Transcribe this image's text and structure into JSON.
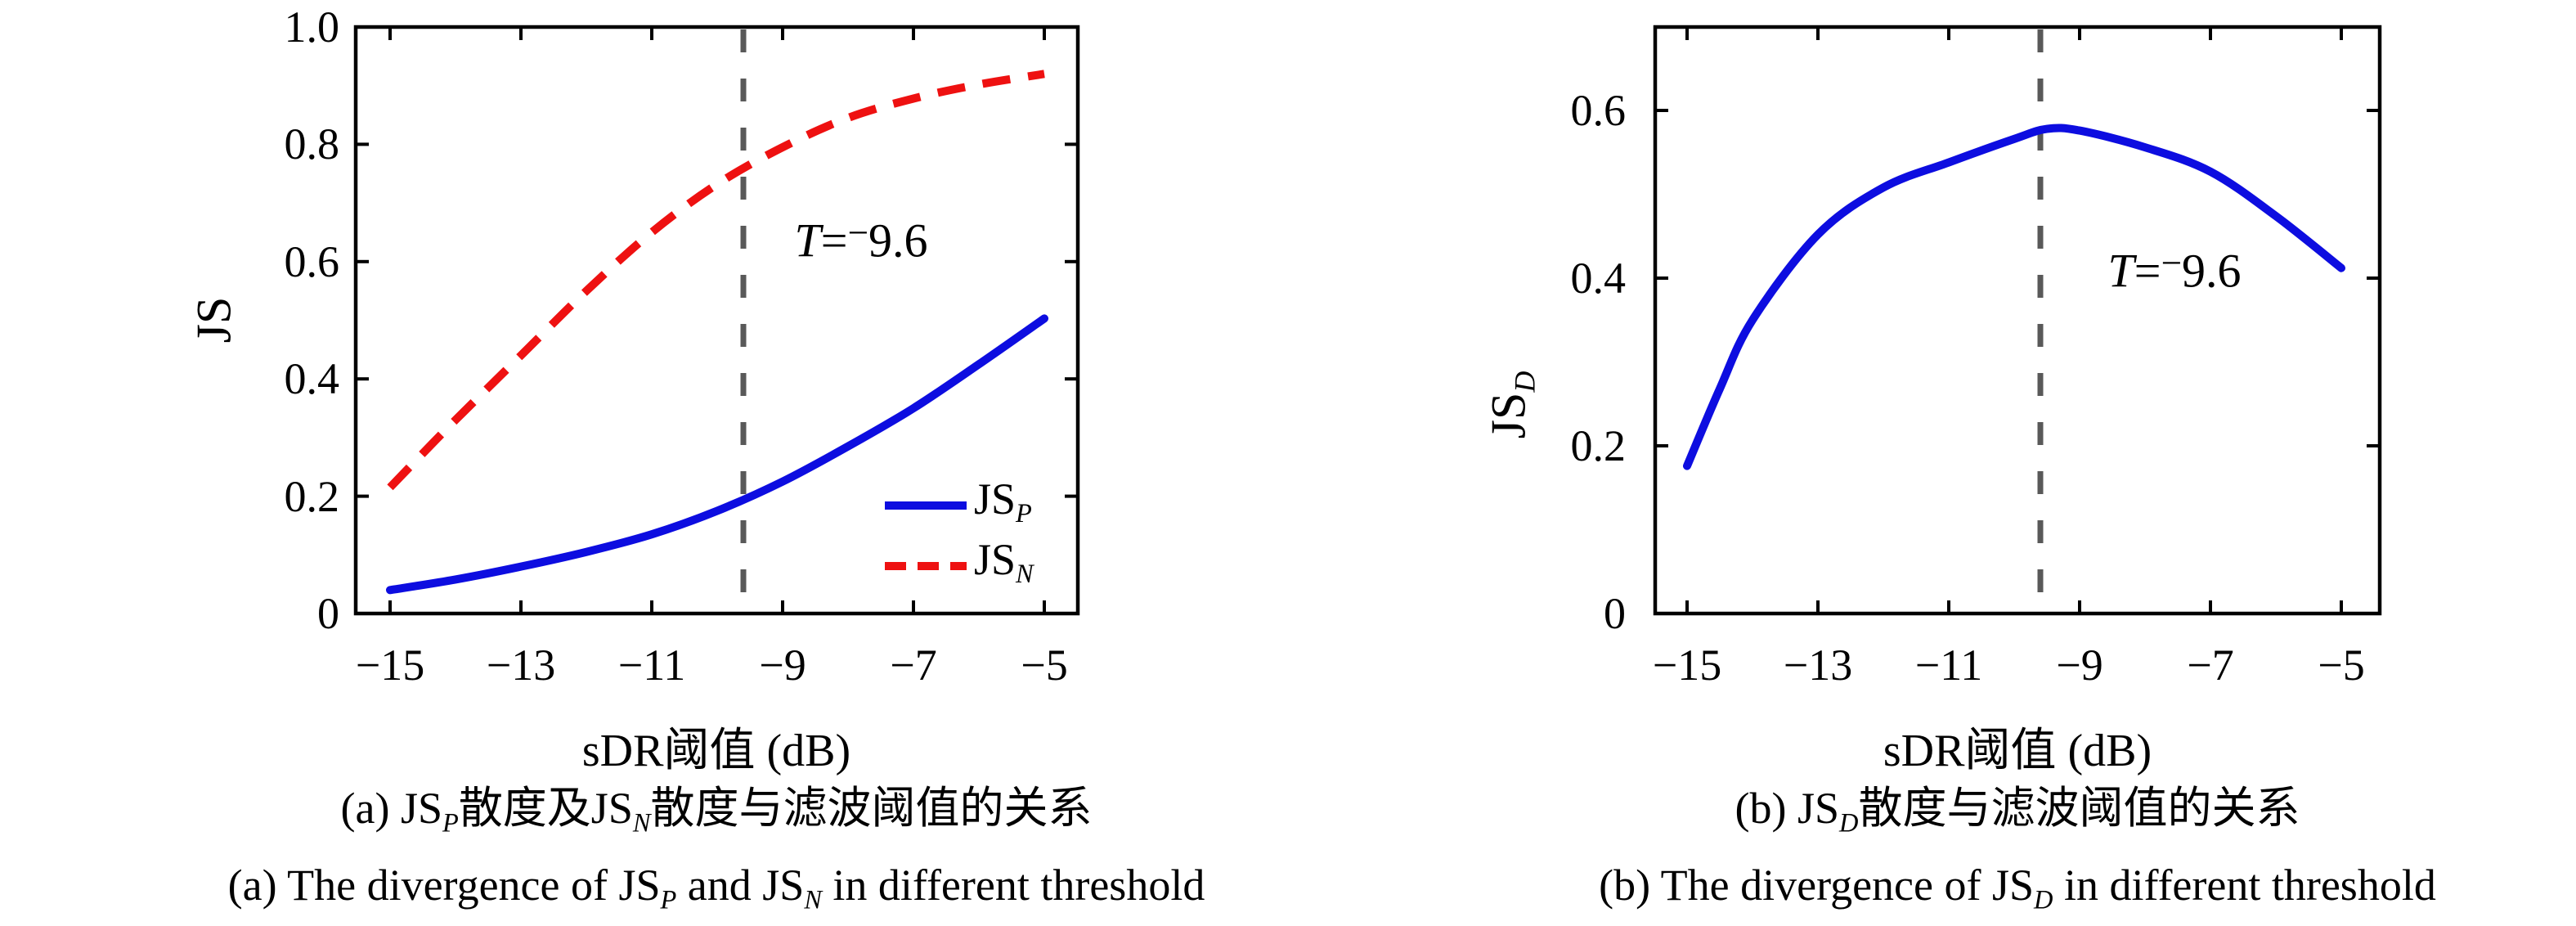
{
  "colors": {
    "js_p_blue": "#0d0de0",
    "js_n_red": "#ee1111",
    "threshold_gray": "#595959",
    "axis_black": "#000000"
  },
  "chart_data": [
    {
      "type": "line",
      "panel": "a",
      "xlabel": "sDR阈值 (dB)",
      "ylabel_text": "JS",
      "ylabel_segments": [
        {
          "t": "JS"
        }
      ],
      "xlim": [
        -15.55,
        -4.45
      ],
      "ylim": [
        0,
        1.0
      ],
      "grid": false,
      "xticks": [
        -15,
        -13,
        -11,
        -9,
        -7,
        -5
      ],
      "xtick_labels": [
        "−15",
        "−13",
        "−11",
        "−9",
        "−7",
        "−5"
      ],
      "yticks": [
        0,
        0.2,
        0.4,
        0.6,
        0.8,
        1.0
      ],
      "ytick_labels": [
        "0",
        "0.2",
        "0.4",
        "0.6",
        "0.8",
        "1.0"
      ],
      "threshold_line": {
        "x": -9.6,
        "style": "dashed",
        "color": "#595959"
      },
      "annotation": {
        "text": "T=−9.6",
        "x": -7.8,
        "y": 0.637,
        "segments": [
          {
            "t": "T",
            "italic": true
          },
          {
            "t": "="
          },
          {
            "t": "−",
            "raised": true
          },
          {
            "t": "9.6"
          }
        ]
      },
      "legend": {
        "position": "bottom-right",
        "entries": [
          {
            "name": "JS_P",
            "segments": [
              {
                "t": "JS"
              },
              {
                "t": "P",
                "sub": true
              }
            ],
            "color": "#0d0de0",
            "dash": false
          },
          {
            "name": "JS_N",
            "segments": [
              {
                "t": "JS"
              },
              {
                "t": "N",
                "sub": true
              }
            ],
            "color": "#ee1111",
            "dash": true
          }
        ]
      },
      "series": [
        {
          "name": "JS_P",
          "color": "#0d0de0",
          "dash": false,
          "x": [
            -15,
            -14,
            -13,
            -12,
            -11,
            -10,
            -9,
            -8,
            -7,
            -6,
            -5
          ],
          "y": [
            0.04,
            0.058,
            0.08,
            0.105,
            0.135,
            0.175,
            0.225,
            0.285,
            0.35,
            0.425,
            0.503
          ]
        },
        {
          "name": "JS_N",
          "color": "#ee1111",
          "dash": true,
          "x": [
            -15,
            -14.5,
            -14,
            -13,
            -12,
            -11,
            -10,
            -9,
            -8,
            -7,
            -6,
            -5
          ],
          "y": [
            0.215,
            0.273,
            0.33,
            0.44,
            0.55,
            0.65,
            0.732,
            0.795,
            0.845,
            0.878,
            0.902,
            0.92
          ]
        }
      ],
      "caption_cn_text": "(a) JS_P散度及JS_N散度与滤波阈值的关系",
      "caption_cn_segments": [
        {
          "t": "(a) JS"
        },
        {
          "t": "P",
          "sub": true
        },
        {
          "t": "散度及JS"
        },
        {
          "t": "N",
          "sub": true
        },
        {
          "t": "散度与滤波阈值的关系"
        }
      ],
      "caption_en_text": "(a) The divergence of JS_P and JS_N in different threshold",
      "caption_en_segments": [
        {
          "t": "(a) The divergence of JS"
        },
        {
          "t": "P",
          "sub": true
        },
        {
          "t": " and JS"
        },
        {
          "t": "N",
          "sub": true
        },
        {
          "t": " in different threshold"
        }
      ]
    },
    {
      "type": "line",
      "panel": "b",
      "xlabel": "sDR阈值 (dB)",
      "ylabel_text": "JS_D",
      "ylabel_segments": [
        {
          "t": "JS"
        },
        {
          "t": "D",
          "sub": true
        }
      ],
      "xlim": [
        -15.49,
        -4.41
      ],
      "ylim": [
        0,
        0.7
      ],
      "grid": false,
      "xticks": [
        -15,
        -13,
        -11,
        -9,
        -7,
        -5
      ],
      "xtick_labels": [
        "−15",
        "−13",
        "−11",
        "−9",
        "−7",
        "−5"
      ],
      "yticks": [
        0,
        0.2,
        0.4,
        0.6
      ],
      "ytick_labels": [
        "0",
        "0.2",
        "0.4",
        "0.6"
      ],
      "threshold_line": {
        "x": -9.6,
        "style": "dashed",
        "color": "#595959"
      },
      "annotation": {
        "text": "T=−9.6",
        "x": -7.55,
        "y": 0.41,
        "segments": [
          {
            "t": "T",
            "italic": true
          },
          {
            "t": "="
          },
          {
            "t": "−",
            "raised": true
          },
          {
            "t": "9.6"
          }
        ]
      },
      "series": [
        {
          "name": "JS_D",
          "color": "#0d0de0",
          "dash": false,
          "x": [
            -15,
            -14.5,
            -14,
            -13,
            -12,
            -11,
            -10,
            -9.5,
            -9,
            -8,
            -7,
            -6,
            -5
          ],
          "y": [
            0.176,
            0.268,
            0.35,
            0.452,
            0.508,
            0.538,
            0.566,
            0.578,
            0.576,
            0.556,
            0.527,
            0.474,
            0.412
          ]
        }
      ],
      "caption_cn_text": "(b) JS_D散度与滤波阈值的关系",
      "caption_cn_segments": [
        {
          "t": "(b) JS"
        },
        {
          "t": "D",
          "sub": true
        },
        {
          "t": "散度与滤波阈值的关系"
        }
      ],
      "caption_en_text": "(b) The divergence of JS_D in different threshold",
      "caption_en_segments": [
        {
          "t": "(b) The divergence of JS"
        },
        {
          "t": "D",
          "sub": true
        },
        {
          "t": " in different threshold"
        }
      ]
    }
  ]
}
